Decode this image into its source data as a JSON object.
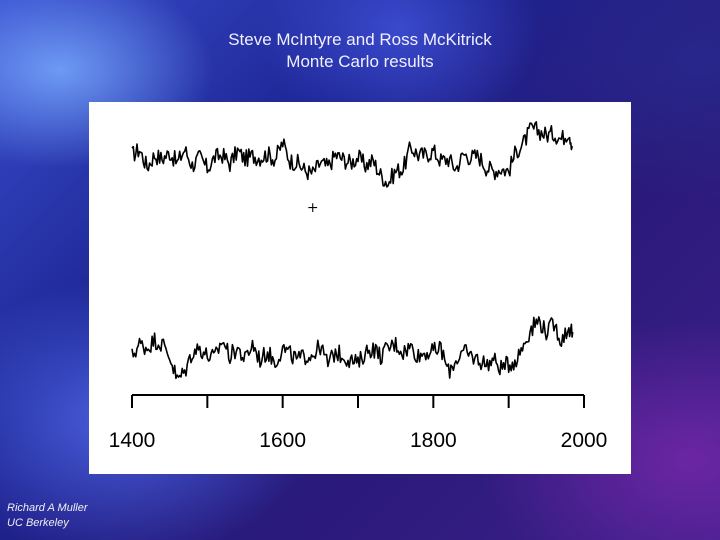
{
  "title": {
    "line1": "Steve McIntyre and Ross McKitrick",
    "line2": "Monte Carlo results"
  },
  "credit": {
    "name": "Richard A Muller",
    "org": "UC Berkeley"
  },
  "chart_data": {
    "type": "line",
    "title": "Steve McIntyre and Ross McKitrick Monte Carlo results",
    "xlabel": "",
    "ylabel": "",
    "xlim": [
      1400,
      2000
    ],
    "x_ticks": [
      1400,
      1500,
      1600,
      1700,
      1800,
      1900,
      2000
    ],
    "x_tick_labels": [
      "1400",
      "1600",
      "1800",
      "2000"
    ],
    "x_tick_label_values": [
      1400,
      1600,
      1800,
      2000
    ],
    "grid": false,
    "legend": "none",
    "marker_annotation": {
      "text": "+",
      "x": 1640
    },
    "series_note": "Two stacked unlabeled noisy series; values in arbitrary relative units (0 = baseline), read approximately from shape.",
    "series": [
      {
        "points": [
          [
            1400,
            0.05
          ],
          [
            1410,
            0.12
          ],
          [
            1420,
            -0.1
          ],
          [
            1430,
            0.05
          ],
          [
            1440,
            0.0
          ],
          [
            1450,
            0.08
          ],
          [
            1460,
            -0.05
          ],
          [
            1470,
            0.12
          ],
          [
            1480,
            -0.08
          ],
          [
            1490,
            0.02
          ],
          [
            1500,
            -0.12
          ],
          [
            1510,
            0.02
          ],
          [
            1520,
            0.05
          ],
          [
            1530,
            -0.06
          ],
          [
            1540,
            0.1
          ],
          [
            1550,
            0.0
          ],
          [
            1560,
            0.04
          ],
          [
            1570,
            0.02
          ],
          [
            1580,
            0.06
          ],
          [
            1590,
            0.0
          ],
          [
            1600,
            0.2
          ],
          [
            1610,
            -0.02
          ],
          [
            1620,
            -0.05
          ],
          [
            1630,
            -0.15
          ],
          [
            1640,
            -0.18
          ],
          [
            1650,
            -0.05
          ],
          [
            1660,
            -0.1
          ],
          [
            1670,
            0.05
          ],
          [
            1680,
            0.0
          ],
          [
            1690,
            -0.05
          ],
          [
            1700,
            0.02
          ],
          [
            1710,
            -0.08
          ],
          [
            1720,
            -0.02
          ],
          [
            1730,
            -0.2
          ],
          [
            1740,
            -0.3
          ],
          [
            1750,
            -0.15
          ],
          [
            1760,
            -0.12
          ],
          [
            1770,
            0.15
          ],
          [
            1780,
            0.05
          ],
          [
            1790,
            0.05
          ],
          [
            1800,
            0.1
          ],
          [
            1810,
            -0.02
          ],
          [
            1820,
            0.0
          ],
          [
            1830,
            -0.12
          ],
          [
            1840,
            0.06
          ],
          [
            1850,
            0.02
          ],
          [
            1860,
            0.04
          ],
          [
            1870,
            -0.1
          ],
          [
            1880,
            -0.15
          ],
          [
            1890,
            -0.12
          ],
          [
            1900,
            -0.15
          ],
          [
            1910,
            0.1
          ],
          [
            1920,
            0.2
          ],
          [
            1930,
            0.38
          ],
          [
            1940,
            0.35
          ],
          [
            1950,
            0.3
          ],
          [
            1960,
            0.32
          ],
          [
            1970,
            0.25
          ],
          [
            1980,
            0.35
          ],
          [
            1985,
            0.15
          ]
        ]
      },
      {
        "points": [
          [
            1400,
            0.0
          ],
          [
            1410,
            0.15
          ],
          [
            1420,
            0.1
          ],
          [
            1430,
            0.2
          ],
          [
            1440,
            0.15
          ],
          [
            1450,
            0.0
          ],
          [
            1460,
            -0.3
          ],
          [
            1470,
            -0.2
          ],
          [
            1480,
            0.05
          ],
          [
            1490,
            0.1
          ],
          [
            1500,
            0.0
          ],
          [
            1510,
            -0.02
          ],
          [
            1520,
            0.2
          ],
          [
            1530,
            0.0
          ],
          [
            1540,
            0.1
          ],
          [
            1550,
            -0.05
          ],
          [
            1560,
            0.15
          ],
          [
            1570,
            -0.05
          ],
          [
            1580,
            0.05
          ],
          [
            1590,
            -0.08
          ],
          [
            1600,
            0.1
          ],
          [
            1610,
            0.02
          ],
          [
            1620,
            -0.05
          ],
          [
            1630,
            0.0
          ],
          [
            1640,
            0.02
          ],
          [
            1650,
            0.12
          ],
          [
            1660,
            -0.1
          ],
          [
            1670,
            0.05
          ],
          [
            1680,
            0.0
          ],
          [
            1690,
            -0.05
          ],
          [
            1700,
            -0.1
          ],
          [
            1710,
            0.05
          ],
          [
            1720,
            0.1
          ],
          [
            1730,
            0.0
          ],
          [
            1740,
            0.1
          ],
          [
            1750,
            0.15
          ],
          [
            1760,
            0.05
          ],
          [
            1770,
            0.12
          ],
          [
            1780,
            0.0
          ],
          [
            1790,
            0.05
          ],
          [
            1800,
            0.05
          ],
          [
            1810,
            0.1
          ],
          [
            1820,
            -0.2
          ],
          [
            1830,
            -0.05
          ],
          [
            1840,
            0.05
          ],
          [
            1850,
            0.0
          ],
          [
            1860,
            -0.05
          ],
          [
            1870,
            -0.1
          ],
          [
            1880,
            -0.05
          ],
          [
            1890,
            -0.15
          ],
          [
            1900,
            -0.1
          ],
          [
            1910,
            -0.05
          ],
          [
            1920,
            0.15
          ],
          [
            1930,
            0.35
          ],
          [
            1940,
            0.45
          ],
          [
            1950,
            0.3
          ],
          [
            1960,
            0.4
          ],
          [
            1970,
            0.2
          ],
          [
            1980,
            0.35
          ],
          [
            1985,
            0.3
          ]
        ]
      }
    ]
  }
}
